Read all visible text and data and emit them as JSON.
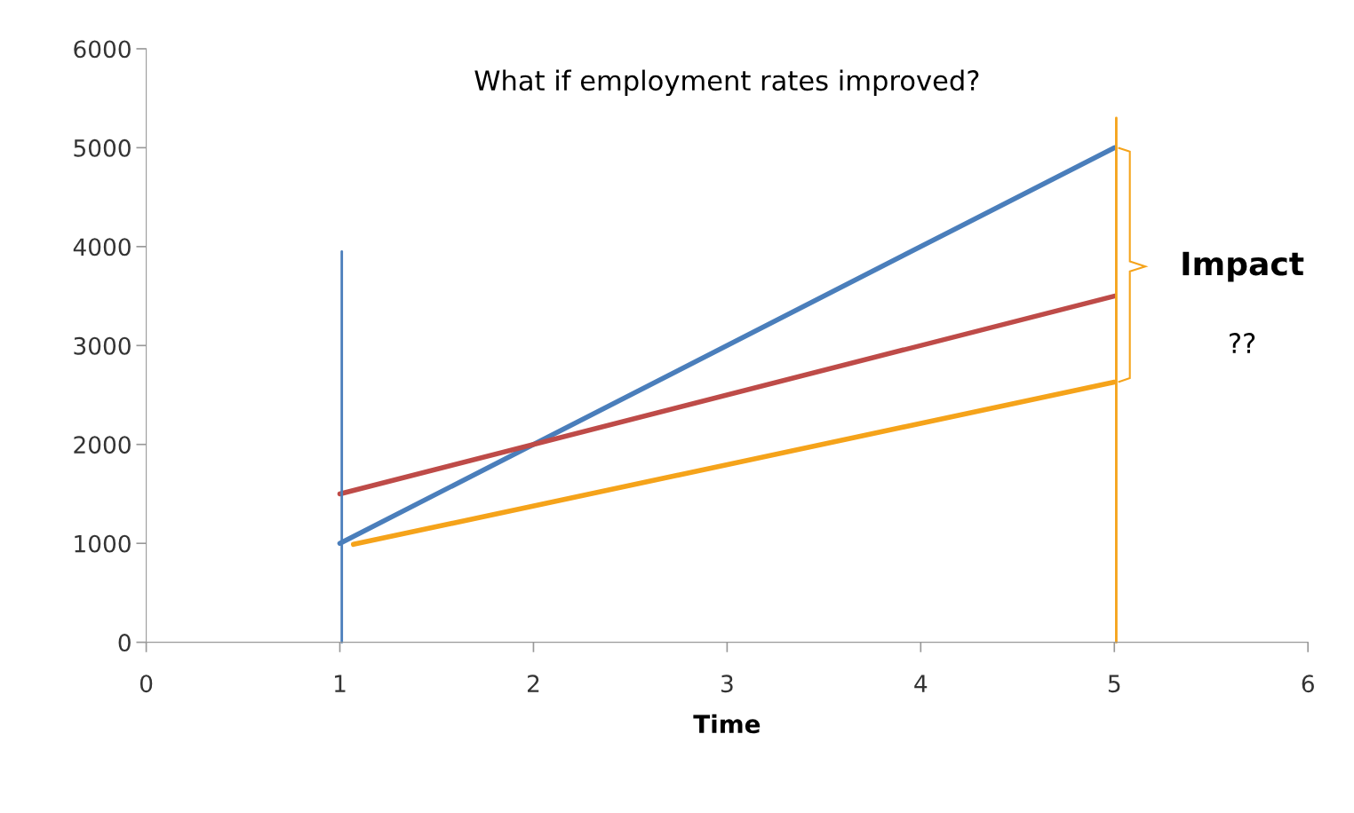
{
  "chart_data": {
    "type": "line",
    "title": "What if employment rates improved?",
    "xlabel": "Time",
    "xlim": [
      0,
      6
    ],
    "xticks": [
      0,
      1,
      2,
      3,
      4,
      5,
      6
    ],
    "ylim": [
      0,
      6000
    ],
    "yticks": [
      0,
      1000,
      2000,
      3000,
      4000,
      5000,
      6000
    ],
    "grid": false,
    "marker": "none",
    "line_style": "solid",
    "series": [
      {
        "color": "#4a7ebb",
        "x": [
          1,
          5
        ],
        "values": [
          1000,
          5000
        ]
      },
      {
        "color": "#be4b48",
        "x": [
          1,
          5
        ],
        "values": [
          1500,
          3500
        ]
      },
      {
        "color": "#f5a31a",
        "x": [
          1.07,
          5
        ],
        "values": [
          990,
          2630
        ]
      },
      {
        "color": "#4a7ebb",
        "x": [
          1.01,
          1.01
        ],
        "values": [
          0,
          3950
        ]
      },
      {
        "color": "#f5a31a",
        "x": [
          5.01,
          5.01
        ],
        "values": [
          0,
          5300
        ]
      }
    ],
    "annotations": [
      "Impact",
      "??"
    ]
  }
}
